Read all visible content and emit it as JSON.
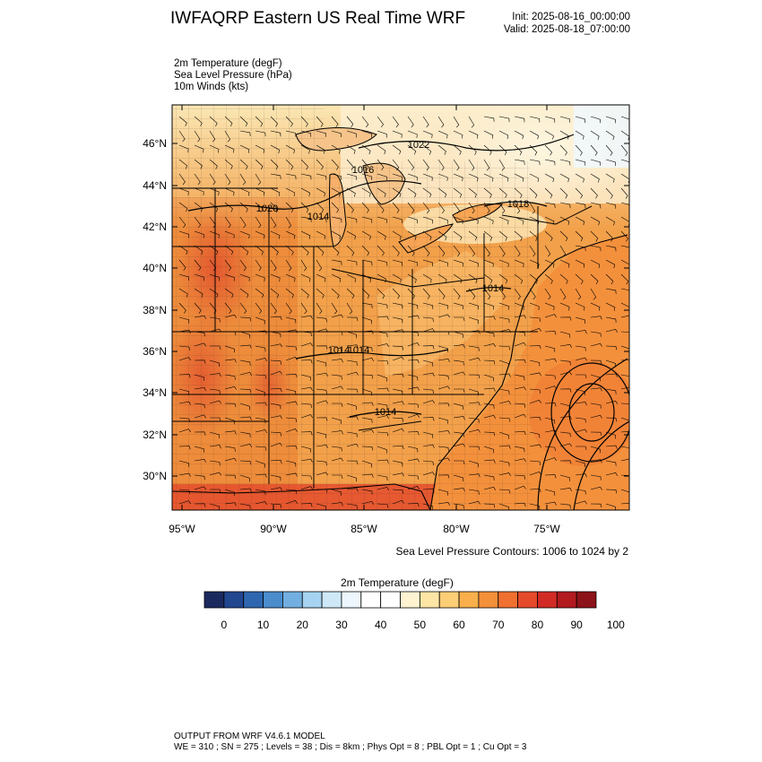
{
  "header": {
    "title": "IWFAQRP Eastern US Real Time WRF",
    "init": "Init: 2025-08-16_00:00:00",
    "valid": "Valid: 2025-08-18_07:00:00"
  },
  "fields": [
    "2m Temperature   (degF)",
    "Sea Level Pressure   (hPa)",
    "10m Winds   (kts)"
  ],
  "map": {
    "lat_labels": [
      "46°N",
      "44°N",
      "42°N",
      "40°N",
      "38°N",
      "36°N",
      "34°N",
      "32°N",
      "30°N"
    ],
    "lon_labels": [
      "95°W",
      "90°W",
      "85°W",
      "80°W",
      "75°W"
    ],
    "contour_labels": [
      "1022",
      "1016",
      "1018",
      "1020",
      "1014",
      "1014",
      "1014",
      "1014",
      "1014"
    ],
    "slp_note": "Sea Level Pressure Contours: 1006 to 1024 by 2"
  },
  "colorbar": {
    "title": "2m Temperature  (degF)",
    "tick_labels": [
      "0",
      "10",
      "20",
      "30",
      "40",
      "50",
      "60",
      "70",
      "80",
      "90",
      "100"
    ],
    "colors": [
      "#1b2a5e",
      "#22468f",
      "#2f66b0",
      "#4a8ccc",
      "#72afe0",
      "#a6d3f1",
      "#cfe8f8",
      "#ecf6fc",
      "#ffffff",
      "#ffffff",
      "#fff3d2",
      "#fde5a6",
      "#fcce76",
      "#f9b04c",
      "#f5903a",
      "#f07030",
      "#e54a2b",
      "#d22b26",
      "#b21a20",
      "#8c1319"
    ]
  },
  "footer": {
    "line1": "OUTPUT FROM WRF V4.6.1 MODEL",
    "line2": "WE = 310 ; SN = 275 ; Levels = 38 ; Dis = 8km ; Phys Opt = 8 ; PBL Opt = 1 ; Cu Opt = 3"
  }
}
